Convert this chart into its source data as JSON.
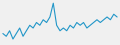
{
  "values": [
    3,
    2,
    4,
    1,
    3,
    5,
    2,
    4,
    6,
    5,
    7,
    6,
    8,
    7,
    9,
    14,
    6,
    4,
    5,
    4,
    6,
    5,
    7,
    6,
    7,
    5,
    6,
    7,
    8,
    7,
    8,
    9,
    8,
    10,
    9
  ],
  "line_color": "#2196c8",
  "background_color": "#f0f0f0",
  "linewidth": 0.8
}
